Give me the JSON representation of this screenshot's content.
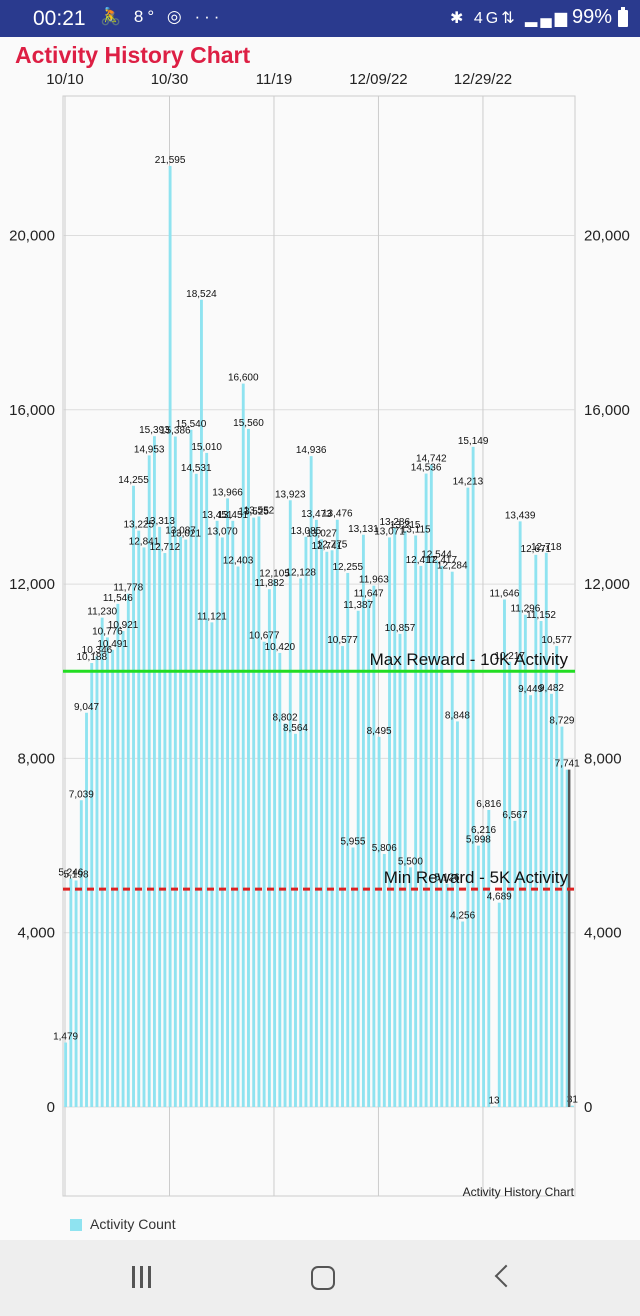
{
  "status_bar": {
    "time": "00:21",
    "left_icons": [
      "🚴",
      "8°",
      "◎",
      "···"
    ],
    "right_icons": [
      "✱",
      "4G⇅",
      "▂▄▆"
    ],
    "battery": "99%"
  },
  "chart_data": {
    "type": "bar",
    "title": "Activity History Chart",
    "watermark_label": "Activity History Chart",
    "x_tick_labels": [
      "10/10",
      "10/30",
      "11/19",
      "12/09/22",
      "12/29/22"
    ],
    "y_ticks": [
      "0",
      "4,000",
      "8,000",
      "12,000",
      "16,000",
      "20,000"
    ],
    "y_tick_values": [
      0,
      4000,
      8000,
      12000,
      16000,
      20000
    ],
    "ylim": [
      0,
      23200
    ],
    "grid": true,
    "legend_position": "bottom-left",
    "series": [
      {
        "name": "Activity Count",
        "color": "#8fe3f0",
        "values": [
          1479,
          5246,
          5198,
          7039,
          9047,
          10188,
          10346,
          11230,
          10776,
          10491,
          11546,
          10921,
          11778,
          14255,
          13225,
          12841,
          14953,
          15393,
          13313,
          12712,
          21595,
          15386,
          13087,
          13021,
          15540,
          14531,
          18524,
          15010,
          11121,
          13451,
          13070,
          13966,
          13451,
          12403,
          16600,
          15560,
          13525,
          13552,
          10677,
          11882,
          12105,
          10420,
          8802,
          13923,
          8564,
          12128,
          13085,
          14936,
          13473,
          13027,
          12741,
          12775,
          13476,
          10577,
          12255,
          5955,
          11387,
          13131,
          11647,
          11963,
          8495,
          5806,
          13071,
          13286,
          10857,
          13215,
          5500,
          13115,
          12417,
          14536,
          14742,
          12544,
          12417,
          5126,
          12284,
          8848,
          4256,
          14213,
          15149,
          5998,
          6216,
          6816,
          13,
          4689,
          11646,
          10217,
          6567,
          13439,
          11296,
          9449,
          12671,
          11152,
          12718,
          9482,
          10577,
          8729,
          7741,
          31
        ],
        "labels": [
          "1,479",
          "5,246",
          "5,198",
          "7,039",
          "9,047",
          "10,188",
          "10,346",
          "11,230",
          "10,776",
          "10,491",
          "11,546",
          "10,921",
          "11,778",
          "14,255",
          "13,225",
          "12,841",
          "14,953",
          "15,393",
          "13,313",
          "12,712",
          "21,595",
          "15,386",
          "13,087",
          "13,021",
          "15,540",
          "14,531",
          "18,524",
          "15,010",
          "11,121",
          "13,451",
          "13,070",
          "13,966",
          "13,451",
          "12,403",
          "16,600",
          "15,560",
          "13,525",
          "13,552",
          "10,677",
          "11,882",
          "12,105",
          "10,420",
          "8,802",
          "13,923",
          "8,564",
          "12,128",
          "13,085",
          "14,936",
          "13,473",
          "13,027",
          "12,741",
          "12,775",
          "13,476",
          "10,577",
          "12,255",
          "5,955",
          "11,387",
          "13,131",
          "11,647",
          "11,963",
          "8,495",
          "5,806",
          "13,071",
          "13,286",
          "10,857",
          "13,215",
          "5,500",
          "13,115",
          "12,417",
          "14,536",
          "14,742",
          "12,544",
          "12,417",
          "5,126",
          "12,284",
          "8,848",
          "4,256",
          "14,213",
          "15,149",
          "5,998",
          "6,216",
          "6,816",
          "13",
          "4,689",
          "11,646",
          "10,217",
          "6,567",
          "13,439",
          "11,296",
          "9,449",
          "12,671",
          "11,152",
          "12,718",
          "9,482",
          "10,577",
          "8,729",
          "7,741",
          "31"
        ]
      }
    ],
    "reference_lines": [
      {
        "label": "Max Reward - 10K Activity",
        "value": 10000,
        "color": "#22dd22",
        "style": "solid"
      },
      {
        "label": "Min Reward - 5K Activity",
        "value": 5000,
        "color": "#dd2222",
        "style": "dashed"
      }
    ],
    "cursor_color": "#555555"
  },
  "legend": {
    "label": "Activity Count",
    "color": "#8fe3f0"
  }
}
